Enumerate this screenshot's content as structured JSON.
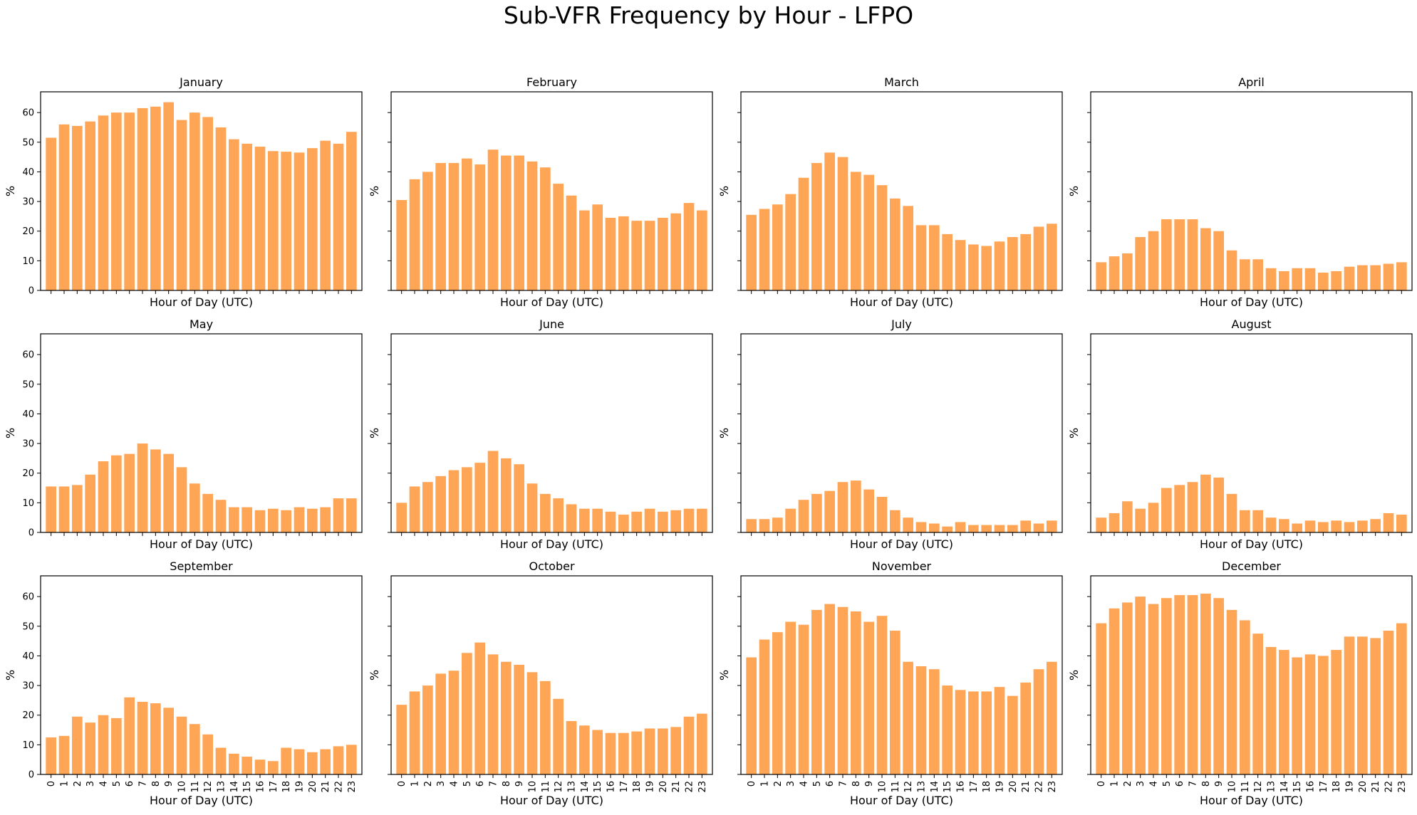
{
  "title": "Sub-VFR Frequency by Hour - LFPO",
  "chart_data": {
    "type": "bar",
    "bar_color": "#ffa556",
    "xlabel": "Hour of Day (UTC)",
    "ylabel": "%",
    "ylim": [
      0,
      67
    ],
    "yticks": [
      0,
      10,
      20,
      30,
      40,
      50,
      60
    ],
    "grid": false,
    "categories": [
      "0",
      "1",
      "2",
      "3",
      "4",
      "5",
      "6",
      "7",
      "8",
      "9",
      "10",
      "11",
      "12",
      "13",
      "14",
      "15",
      "16",
      "17",
      "18",
      "19",
      "20",
      "21",
      "22",
      "23"
    ],
    "panels": [
      {
        "title": "January",
        "values": [
          51.5,
          56,
          55.5,
          57,
          59,
          60,
          60,
          61.5,
          62,
          63.5,
          57.5,
          60,
          58.5,
          55,
          51,
          49.5,
          48.5,
          47,
          46.8,
          46.5,
          48,
          50.5,
          49.5,
          53.5
        ]
      },
      {
        "title": "February",
        "values": [
          30.5,
          37.5,
          40,
          43,
          43,
          44.5,
          42.5,
          47.5,
          45.5,
          45.5,
          43.5,
          41.5,
          36,
          32,
          27,
          29,
          24.5,
          25,
          23.5,
          23.5,
          24.5,
          26,
          29.5,
          27
        ]
      },
      {
        "title": "March",
        "values": [
          25.5,
          27.5,
          29,
          32.5,
          38,
          43,
          46.5,
          45,
          40,
          39,
          35.5,
          31,
          28.5,
          22,
          22,
          19,
          17,
          15.5,
          15,
          16.5,
          18,
          19,
          21.5,
          22.5
        ]
      },
      {
        "title": "April",
        "values": [
          9.5,
          11.5,
          12.5,
          18,
          20,
          24,
          24,
          24,
          21,
          20,
          13.5,
          10.5,
          10.5,
          7.5,
          6.5,
          7.5,
          7.5,
          6,
          6.5,
          8,
          8.5,
          8.5,
          9,
          9.5
        ]
      },
      {
        "title": "May",
        "values": [
          15.5,
          15.5,
          16,
          19.5,
          24,
          26,
          26.5,
          30,
          28,
          26.5,
          22,
          16.5,
          13,
          11,
          8.5,
          8.5,
          7.5,
          8,
          7.5,
          8.5,
          8,
          8.5,
          11.5,
          11.5
        ]
      },
      {
        "title": "June",
        "values": [
          10,
          15.5,
          17,
          19,
          21,
          22,
          23.5,
          27.5,
          25,
          23,
          16.5,
          13,
          11.5,
          9.5,
          8,
          8,
          7,
          6,
          7,
          8,
          7,
          7.5,
          8,
          8
        ]
      },
      {
        "title": "July",
        "values": [
          4.5,
          4.5,
          5,
          8,
          11,
          13,
          14,
          17,
          17.5,
          14.5,
          12,
          7.5,
          5,
          3.5,
          3,
          2,
          3.5,
          2.5,
          2.5,
          2.5,
          2.5,
          4,
          3,
          4
        ]
      },
      {
        "title": "August",
        "values": [
          5,
          6.5,
          10.5,
          8,
          10,
          15,
          16,
          17,
          19.5,
          18.5,
          13,
          7.5,
          7.5,
          5,
          4.5,
          3,
          4,
          3.5,
          4,
          3.5,
          4,
          4.5,
          6.5,
          6
        ]
      },
      {
        "title": "September",
        "values": [
          12.5,
          13,
          19.5,
          17.5,
          20,
          19,
          26,
          24.5,
          24,
          22.5,
          19.5,
          17,
          13.5,
          9,
          7,
          6,
          5,
          4.5,
          9,
          8.5,
          7.5,
          8.5,
          9.5,
          10
        ]
      },
      {
        "title": "October",
        "values": [
          23.5,
          28,
          30,
          34,
          35,
          41,
          44.5,
          40.5,
          38,
          37,
          34.5,
          31.5,
          25.5,
          18,
          16.5,
          15,
          14,
          14,
          14.5,
          15.5,
          15.5,
          16,
          19.5,
          20.5
        ]
      },
      {
        "title": "November",
        "values": [
          39.5,
          45.5,
          48,
          51.5,
          50.5,
          55.5,
          57.5,
          56.5,
          55,
          51.5,
          53.5,
          48.5,
          38,
          36.5,
          35.5,
          30,
          28.5,
          28,
          28,
          29.5,
          26.5,
          31,
          35.5,
          38
        ]
      },
      {
        "title": "December",
        "values": [
          51,
          56,
          58,
          60,
          57.5,
          59.5,
          60.5,
          60.5,
          61,
          59.5,
          55.5,
          52,
          47.5,
          43,
          42,
          39.5,
          40.5,
          40,
          42,
          46.5,
          46.5,
          46,
          48.5,
          51
        ]
      }
    ]
  }
}
